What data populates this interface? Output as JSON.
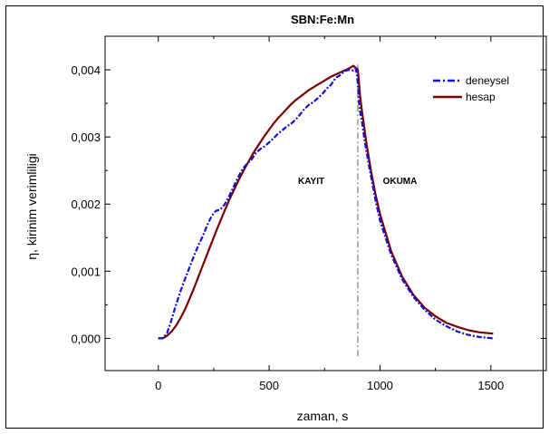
{
  "chart_data": {
    "type": "line",
    "title": "SBN:Fe:Mn",
    "xlabel": "zaman, s",
    "ylabel": "η, kirinim verimliligi",
    "xlim": [
      -240,
      1750
    ],
    "ylim": [
      -0.00048,
      0.0045
    ],
    "x_ticks": [
      0,
      500,
      1000,
      1500
    ],
    "x_tick_labels": [
      "0",
      "500",
      "1000",
      "1500"
    ],
    "y_ticks": [
      0.0,
      0.001,
      0.002,
      0.003,
      0.004
    ],
    "y_tick_labels": [
      "0,000",
      "0,001",
      "0,002",
      "0,003",
      "0,004"
    ],
    "grid": false,
    "legend_position": "top-right",
    "annotations": [
      {
        "text": "KAYIT",
        "x": 690,
        "y": 0.0023
      },
      {
        "text": "OKUMA",
        "x": 1090,
        "y": 0.0023
      }
    ],
    "vline": {
      "x": 900,
      "style": "dash-dot",
      "color": "#666666"
    },
    "series": [
      {
        "name": "deneysel",
        "style": "dash-dot",
        "color": "#1010dd",
        "x": [
          0,
          20,
          40,
          60,
          80,
          100,
          120,
          140,
          160,
          180,
          200,
          220,
          240,
          260,
          280,
          300,
          320,
          340,
          360,
          380,
          400,
          420,
          440,
          460,
          480,
          500,
          520,
          540,
          560,
          580,
          600,
          620,
          640,
          660,
          680,
          700,
          720,
          740,
          760,
          780,
          800,
          820,
          840,
          860,
          880,
          890,
          895,
          900,
          905,
          910,
          920,
          930,
          940,
          960,
          980,
          1000,
          1050,
          1100,
          1150,
          1200,
          1250,
          1300,
          1350,
          1400,
          1450,
          1510
        ],
        "y": [
          0.0,
          0.0,
          8e-05,
          0.00028,
          0.0005,
          0.0007,
          0.00088,
          0.00105,
          0.00122,
          0.00138,
          0.00152,
          0.00168,
          0.00182,
          0.0019,
          0.00192,
          0.002,
          0.00212,
          0.00226,
          0.0024,
          0.00252,
          0.0026,
          0.00266,
          0.00276,
          0.00282,
          0.00286,
          0.00292,
          0.00298,
          0.00305,
          0.0031,
          0.00316,
          0.0032,
          0.00326,
          0.00334,
          0.00342,
          0.00348,
          0.00352,
          0.00358,
          0.00364,
          0.00372,
          0.00378,
          0.00388,
          0.00392,
          0.00398,
          0.004,
          0.00399,
          0.00402,
          0.00395,
          0.00378,
          0.00352,
          0.00338,
          0.0032,
          0.00296,
          0.00276,
          0.0024,
          0.00205,
          0.00175,
          0.00125,
          0.00088,
          0.00062,
          0.00043,
          0.00028,
          0.00018,
          0.0001,
          5e-05,
          2e-05,
          0.0
        ]
      },
      {
        "name": "hesap",
        "style": "solid",
        "color": "#7a0000",
        "x": [
          0,
          20,
          40,
          60,
          80,
          100,
          120,
          140,
          160,
          180,
          200,
          220,
          240,
          260,
          280,
          300,
          320,
          340,
          360,
          380,
          400,
          420,
          440,
          460,
          480,
          500,
          520,
          540,
          560,
          580,
          600,
          620,
          640,
          660,
          680,
          700,
          720,
          740,
          760,
          780,
          800,
          820,
          840,
          860,
          880,
          900,
          905,
          910,
          920,
          940,
          960,
          980,
          1000,
          1050,
          1100,
          1150,
          1200,
          1250,
          1300,
          1350,
          1400,
          1450,
          1510
        ],
        "y": [
          0.0,
          0.0,
          4e-05,
          0.0001,
          0.00019,
          0.0003,
          0.00043,
          0.00058,
          0.00074,
          0.00091,
          0.00108,
          0.00125,
          0.00142,
          0.00159,
          0.00175,
          0.00191,
          0.00206,
          0.0022,
          0.00234,
          0.00247,
          0.00259,
          0.00271,
          0.00282,
          0.00292,
          0.00302,
          0.00311,
          0.0032,
          0.00328,
          0.00335,
          0.00342,
          0.00349,
          0.00355,
          0.0036,
          0.00365,
          0.0037,
          0.00374,
          0.00378,
          0.00382,
          0.00386,
          0.0039,
          0.00393,
          0.00396,
          0.00399,
          0.00402,
          0.00406,
          0.004,
          0.00382,
          0.00362,
          0.00335,
          0.00288,
          0.00248,
          0.00214,
          0.00185,
          0.0013,
          0.00092,
          0.00065,
          0.00046,
          0.00033,
          0.00023,
          0.00017,
          0.00012,
          9e-05,
          7e-05
        ]
      }
    ]
  }
}
